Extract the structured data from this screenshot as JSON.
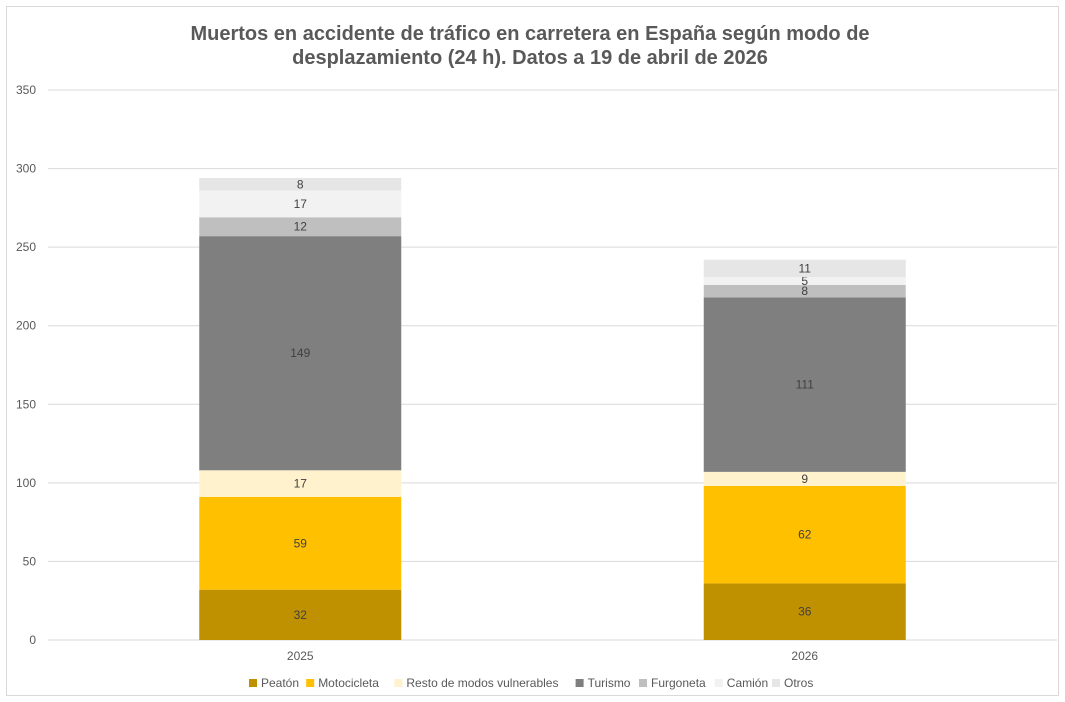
{
  "chart_data": {
    "type": "bar",
    "stacked": true,
    "title": "Muertos en accidente de tráfico en carretera en España según modo de desplazamiento (24 h). Datos a 19 de abril de 2026",
    "categories": [
      "2025",
      "2026"
    ],
    "ylim": [
      0,
      350
    ],
    "yticks": [
      "0",
      "50",
      "100",
      "150",
      "200",
      "250",
      "300",
      "350"
    ],
    "grid": true,
    "legend_position": "bottom",
    "series": [
      {
        "name": "Peatón",
        "values": [
          32,
          36
        ],
        "color": "#bf9000"
      },
      {
        "name": "Motocicleta",
        "values": [
          59,
          62
        ],
        "color": "#ffc000"
      },
      {
        "name": "Resto de modos vulnerables",
        "values": [
          17,
          9
        ],
        "color": "#fff2cc"
      },
      {
        "name": "Turismo",
        "values": [
          149,
          111
        ],
        "color": "#7f7f7f"
      },
      {
        "name": "Furgoneta",
        "values": [
          12,
          8
        ],
        "color": "#bfbfbf"
      },
      {
        "name": "Camión",
        "values": [
          17,
          5
        ],
        "color": "#f2f2f2"
      },
      {
        "name": "Otros",
        "values": [
          8,
          11
        ],
        "color": "#e7e6e6"
      }
    ]
  }
}
